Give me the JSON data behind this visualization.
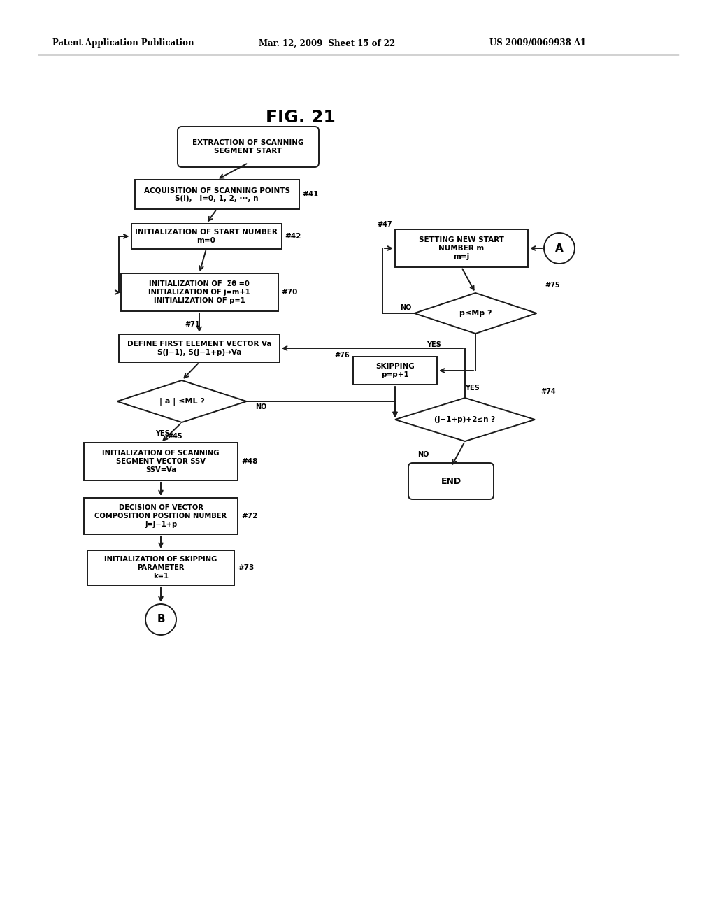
{
  "header_left": "Patent Application Publication",
  "header_mid": "Mar. 12, 2009  Sheet 15 of 22",
  "header_right": "US 2009/0069938 A1",
  "title": "FIG. 21",
  "bg_color": "#ffffff",
  "lc": "#1a1a1a",
  "fc": "#ffffff",
  "fs_label": 7.0,
  "fs_tag": 7.5,
  "fs_yesno": 7.0,
  "lw": 1.4
}
